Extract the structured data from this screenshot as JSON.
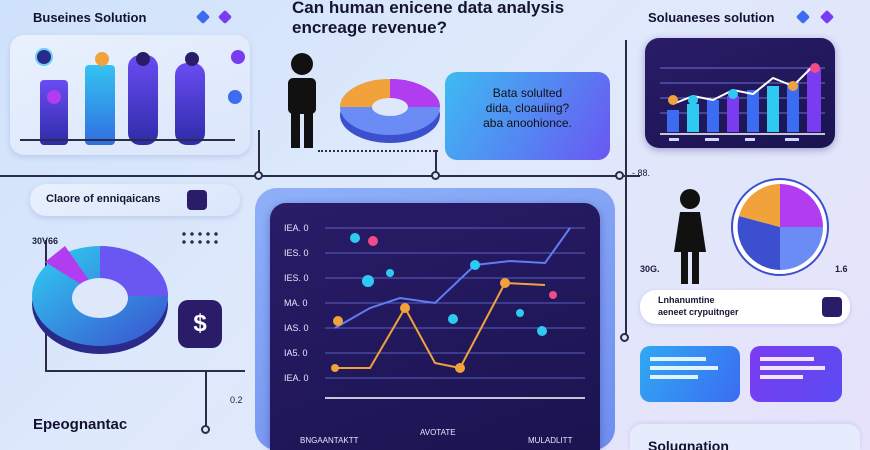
{
  "header": {
    "title_line1": "Can human enicene data analysis",
    "title_line2": "encreage revenue?"
  },
  "left_top": {
    "title": "Buseines Solution"
  },
  "callout": {
    "line1": "Bata solulted",
    "line2": "dida, cloauiing?",
    "line3": "aba anoohionce."
  },
  "right_top": {
    "title": "Soluaneses solution"
  },
  "left_mid": {
    "label": "Claore of enniqaicans",
    "side_value": "30V66"
  },
  "left_bottom": {
    "title": "Epeognantac",
    "side_value": "0.2"
  },
  "chart": {
    "y_ticks": [
      "IEA. 0",
      "IES. 0",
      "IES. 0",
      "MA. 0",
      "IAS. 0",
      "IA5. 0",
      "IEA. 0"
    ],
    "x_labels": [
      "BNGAANTAKTT",
      "AVOTATE",
      "MULADLITT"
    ],
    "icon_label": "Q",
    "right_marker": "- 88."
  },
  "right_mid": {
    "left_value": "30G.",
    "right_value": "1.6"
  },
  "right_bar": {
    "line1": "Lnhanumtine",
    "line2": "aeneet crypuitnger"
  },
  "right_bottom": {
    "title": "Solugnation"
  },
  "colors": {
    "blue": "#3b6cf2",
    "purple": "#7a3cf0",
    "cyan": "#30c9f2",
    "orange": "#f2a23a",
    "navy": "#1f1757"
  }
}
